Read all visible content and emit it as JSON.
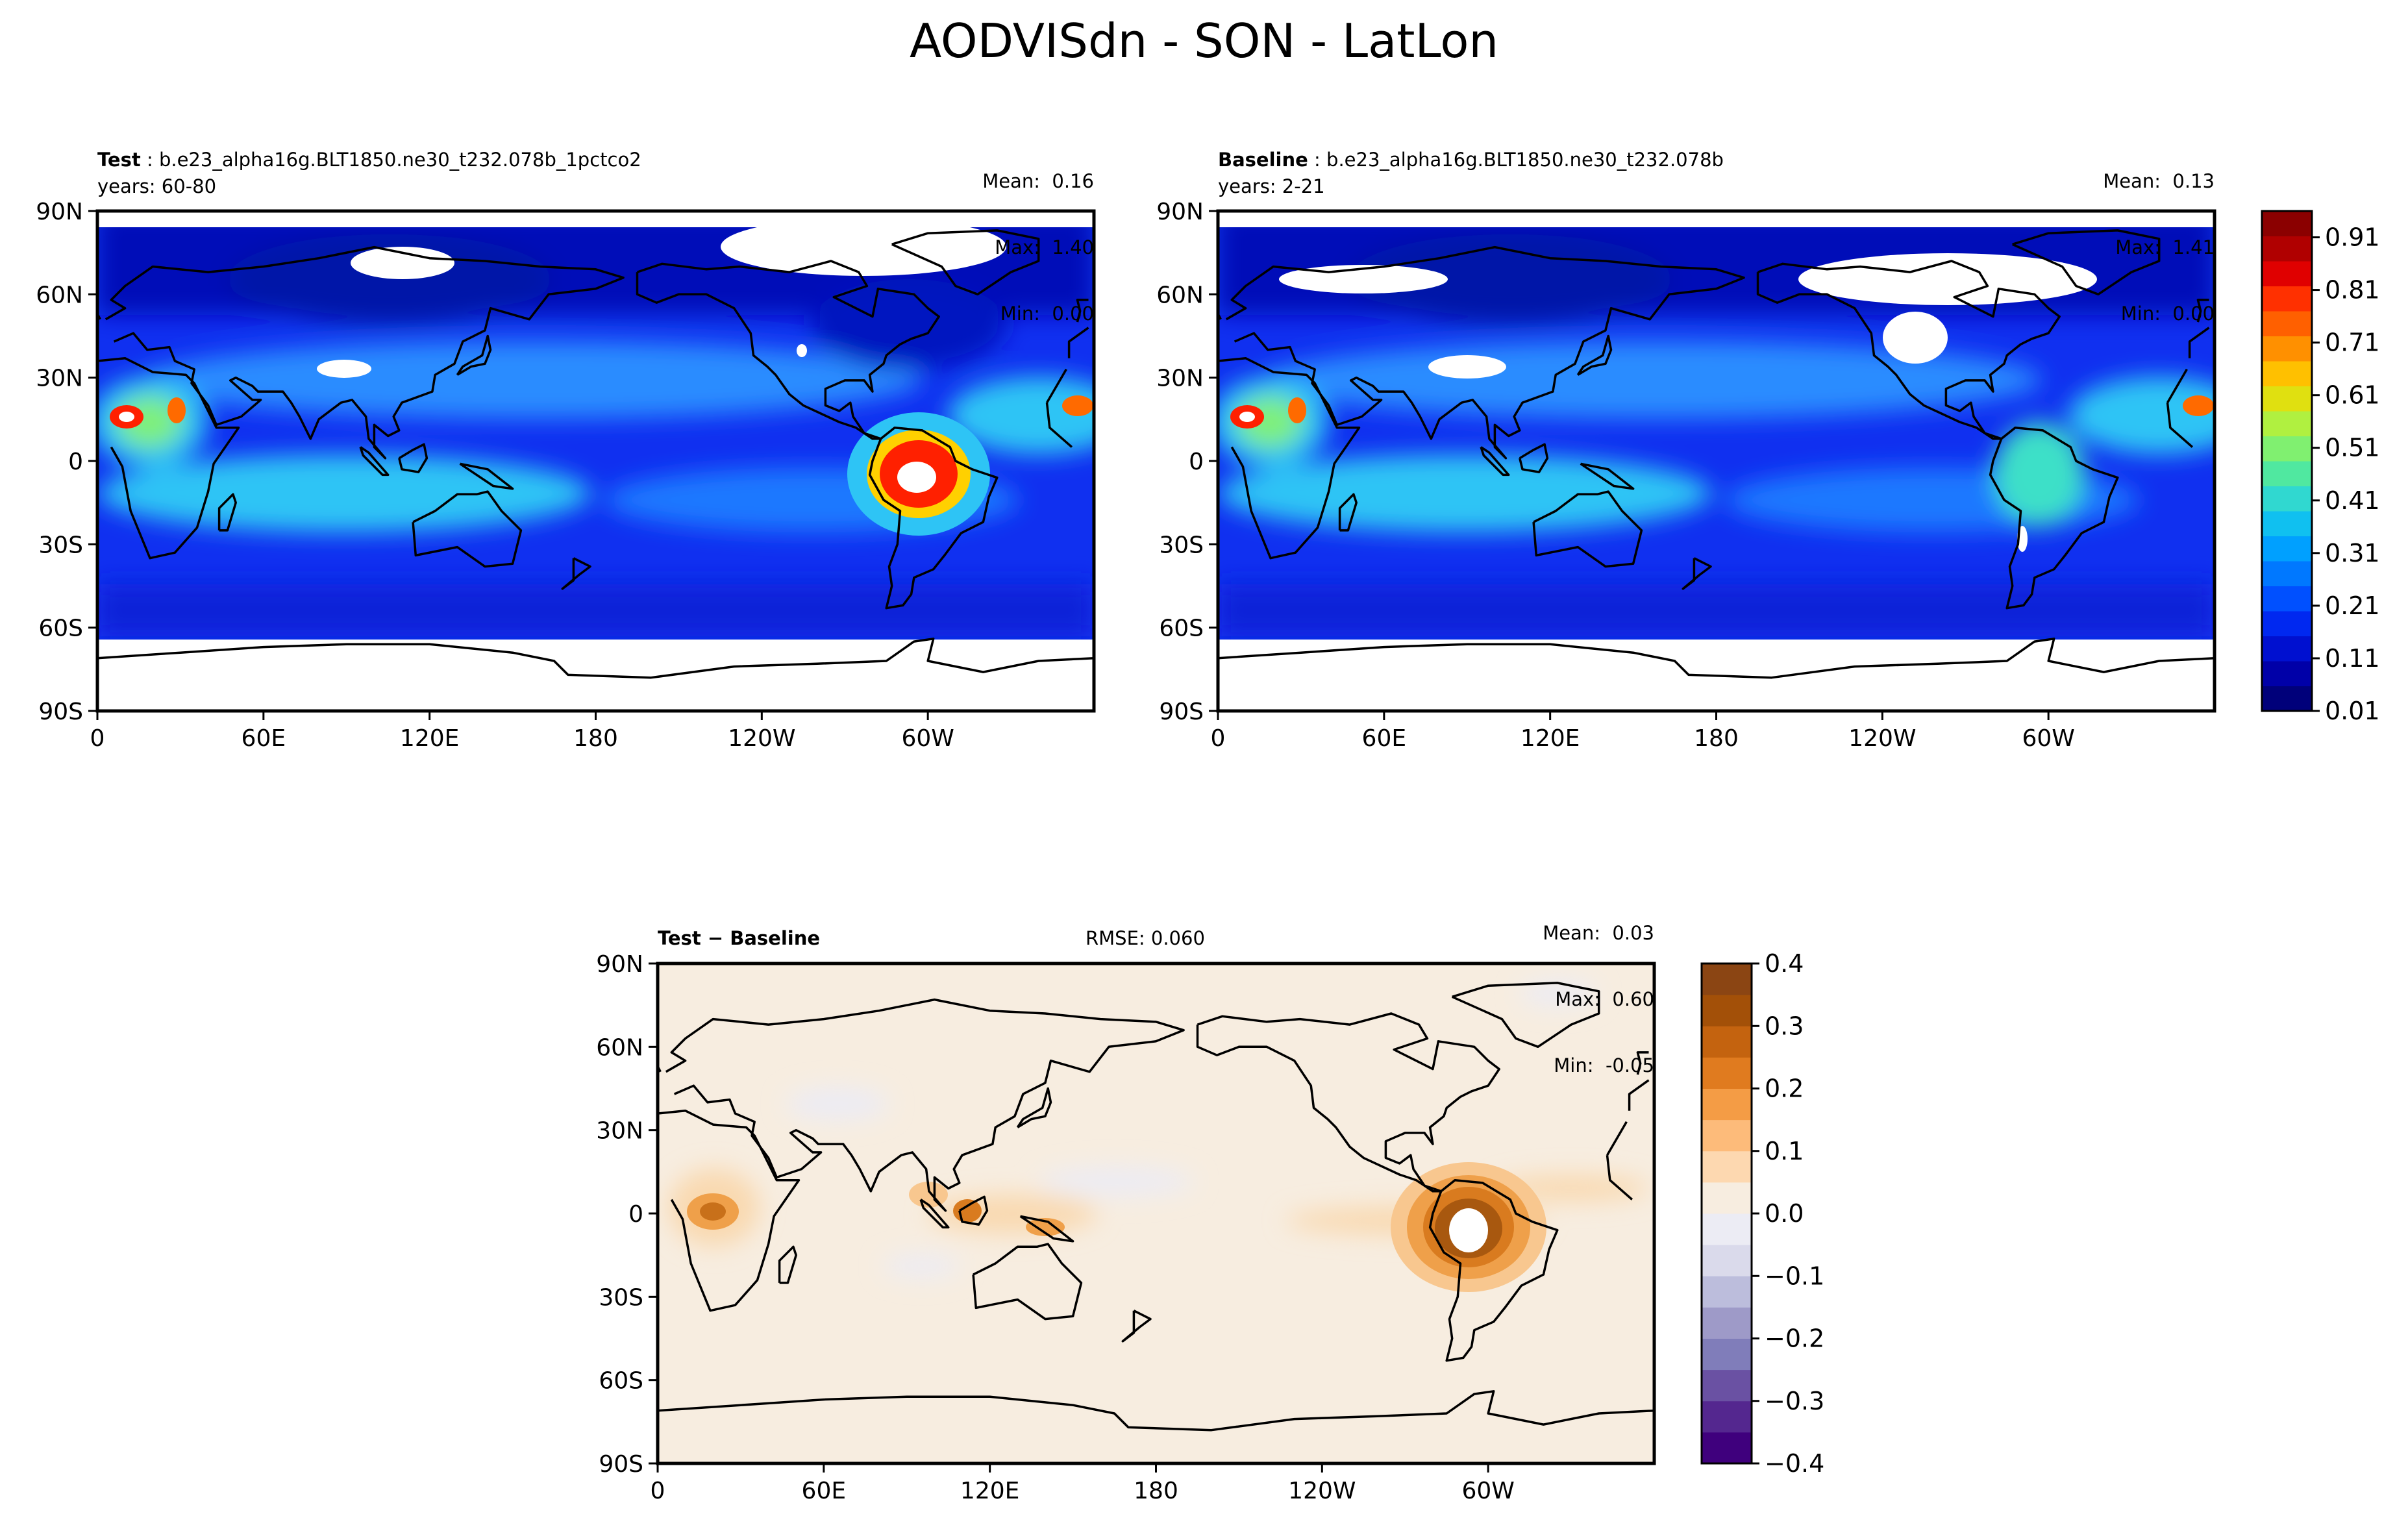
{
  "title": "AODVISdn - SON - LatLon",
  "colors": {
    "map_low": "#00007a",
    "map_high": "#8b0000",
    "diff_pos": "#8b4513",
    "diff_neg": "#3f007d",
    "diff_zero": "#f7ede0",
    "land_outline": "#000000"
  },
  "panels": {
    "test": {
      "label": "Test",
      "case": "b.e23_alpha16g.BLT1850.ne30_t232.078b_1pctco2",
      "years": "years: 60-80",
      "stats": {
        "mean_label": "Mean:",
        "mean": "0.16",
        "max_label": "Max:",
        "max": "1.40",
        "min_label": "Min:",
        "min": "0.00"
      }
    },
    "baseline": {
      "label": "Baseline",
      "case": "b.e23_alpha16g.BLT1850.ne30_t232.078b",
      "years": "years: 2-21",
      "stats": {
        "mean_label": "Mean:",
        "mean": "0.13",
        "max_label": "Max:",
        "max": "1.41",
        "min_label": "Min:",
        "min": "0.00"
      }
    },
    "diff": {
      "label": "Test − Baseline",
      "rmse": "RMSE: 0.060",
      "stats": {
        "mean_label": "Mean:",
        "mean": "0.03",
        "max_label": "Max:",
        "max": "0.60",
        "min_label": "Min:",
        "min": "-0.05"
      }
    }
  },
  "chart_data": [
    {
      "type": "heatmap",
      "panel": "Test",
      "projection": "lat-lon",
      "xlim": [
        0,
        360
      ],
      "ylim": [
        -90,
        90
      ],
      "x_ticks": [
        "0",
        "60E",
        "120E",
        "180",
        "120W",
        "60W"
      ],
      "y_ticks": [
        "90N",
        "60N",
        "30N",
        "0",
        "30S",
        "60S",
        "90S"
      ],
      "colorbar_ticks": [
        "0.91",
        "0.81",
        "0.71",
        "0.61",
        "0.51",
        "0.41",
        "0.31",
        "0.21",
        "0.11",
        "0.01"
      ],
      "colorbar_range": [
        0.01,
        0.96
      ],
      "mean": 0.16,
      "max": 1.4,
      "min": 0.0,
      "hotspots": [
        {
          "name": "South America",
          "lon": 305,
          "lat": -5,
          "value": 1.4
        },
        {
          "name": "West Africa",
          "lon": 15,
          "lat": 15,
          "value": 0.9
        },
        {
          "name": "Central Africa",
          "lon": 28,
          "lat": 18,
          "value": 0.7
        }
      ]
    },
    {
      "type": "heatmap",
      "panel": "Baseline",
      "projection": "lat-lon",
      "xlim": [
        0,
        360
      ],
      "ylim": [
        -90,
        90
      ],
      "x_ticks": [
        "0",
        "60E",
        "120E",
        "180",
        "120W",
        "60W"
      ],
      "y_ticks": [
        "90N",
        "60N",
        "30N",
        "0",
        "30S",
        "60S",
        "90S"
      ],
      "colorbar_ticks": [
        "0.91",
        "0.81",
        "0.71",
        "0.61",
        "0.51",
        "0.41",
        "0.31",
        "0.21",
        "0.11",
        "0.01"
      ],
      "colorbar_range": [
        0.01,
        0.96
      ],
      "mean": 0.13,
      "max": 1.41,
      "min": 0.0,
      "hotspots": [
        {
          "name": "West Africa",
          "lon": 15,
          "lat": 15,
          "value": 1.0
        },
        {
          "name": "Central Africa",
          "lon": 28,
          "lat": 18,
          "value": 0.7
        },
        {
          "name": "South America",
          "lon": 305,
          "lat": -10,
          "value": 0.45
        }
      ]
    },
    {
      "type": "heatmap",
      "panel": "Test − Baseline",
      "projection": "lat-lon",
      "xlim": [
        0,
        360
      ],
      "ylim": [
        -90,
        90
      ],
      "x_ticks": [
        "0",
        "60E",
        "120E",
        "180",
        "120W",
        "60W"
      ],
      "y_ticks": [
        "90N",
        "60N",
        "30N",
        "0",
        "30S",
        "60S",
        "90S"
      ],
      "colorbar_ticks": [
        "0.4",
        "0.3",
        "0.2",
        "0.1",
        "0.0",
        "−0.1",
        "−0.2",
        "−0.3",
        "−0.4"
      ],
      "colorbar_range": [
        -0.4,
        0.4
      ],
      "rmse": 0.06,
      "mean": 0.03,
      "max": 0.6,
      "min": -0.05,
      "hotspots": [
        {
          "name": "South America",
          "lon": 302,
          "lat": -3,
          "value": 0.6
        },
        {
          "name": "Central Africa",
          "lon": 20,
          "lat": 0,
          "value": 0.25
        },
        {
          "name": "Maritime Continent",
          "lon": 112,
          "lat": -2,
          "value": 0.2
        }
      ]
    }
  ]
}
